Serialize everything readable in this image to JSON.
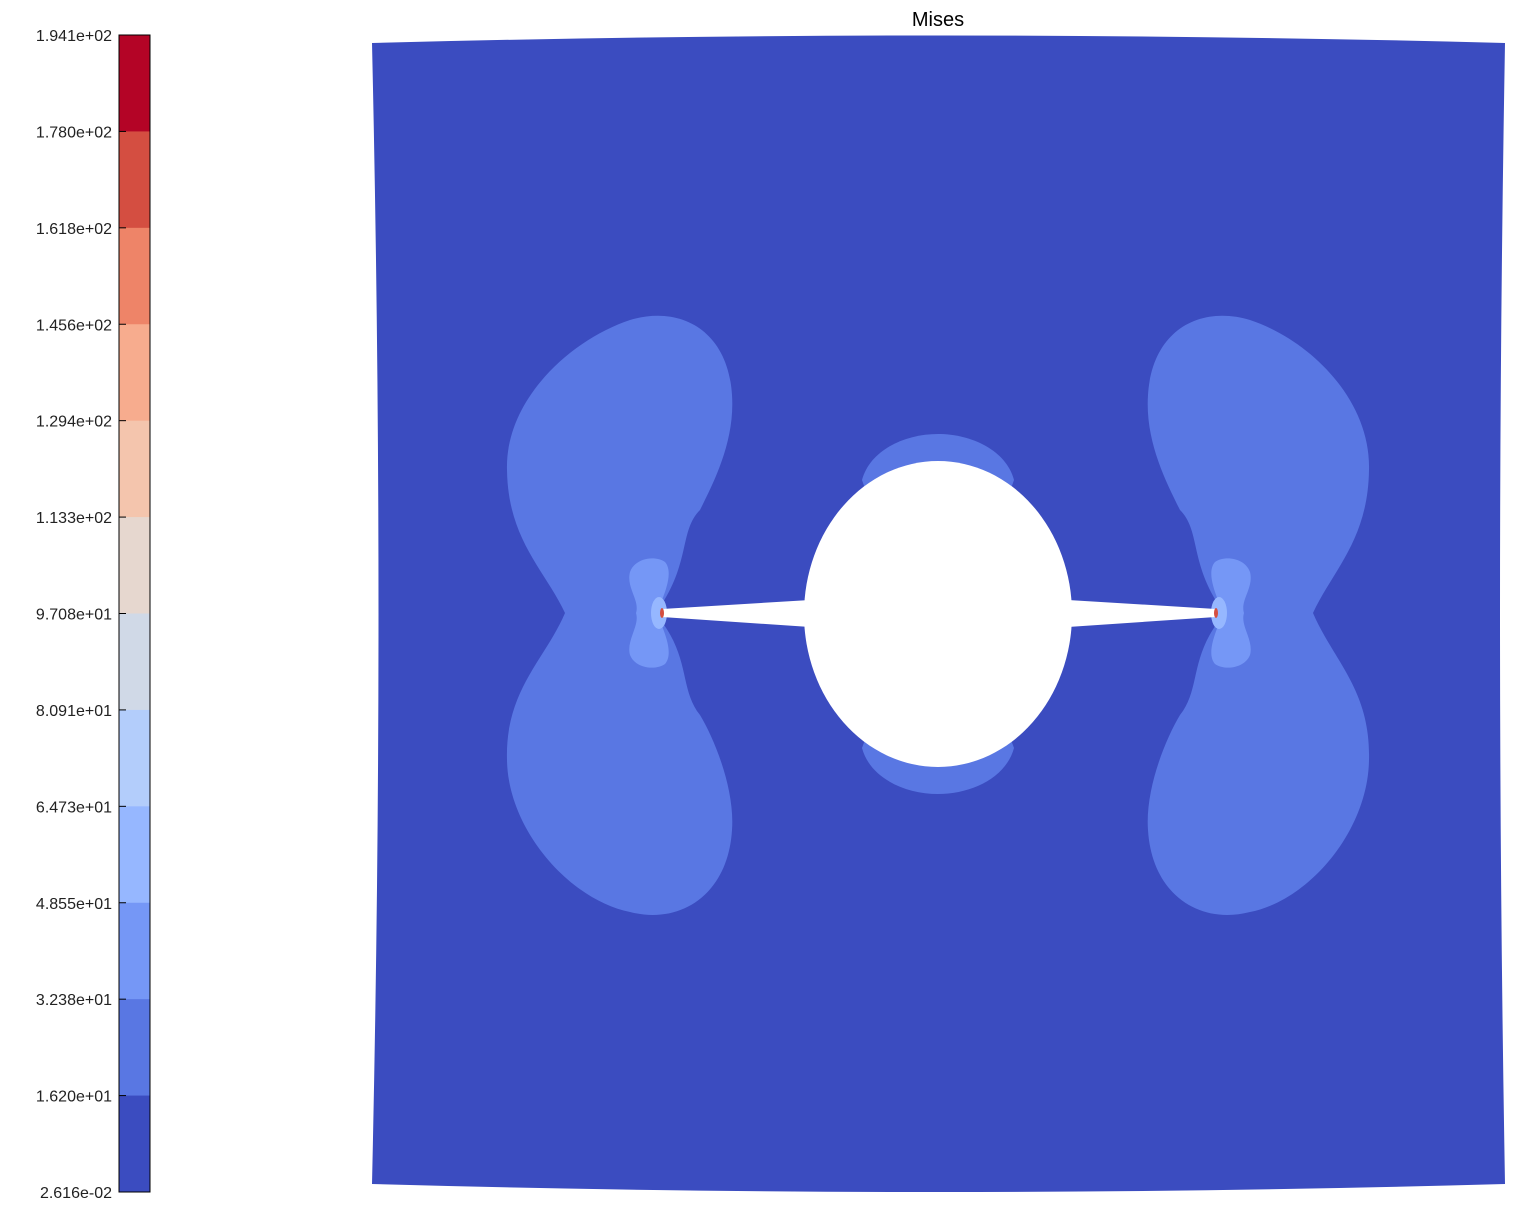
{
  "title": "Mises",
  "colorbar": {
    "ticks": [
      "1.941e+02",
      "1.780e+02",
      "1.618e+02",
      "1.456e+02",
      "1.294e+02",
      "1.133e+02",
      "9.708e+01",
      "8.091e+01",
      "6.473e+01",
      "4.855e+01",
      "3.238e+01",
      "1.620e+01",
      "2.616e-02"
    ],
    "bands": [
      "#b40426",
      "#d44e41",
      "#ee8468",
      "#f7ac8e",
      "#f4c5ad",
      "#e6d7cf",
      "#d0d9e7",
      "#b3cdfb",
      "#96b7ff",
      "#7597f6",
      "#5977e3",
      "#3b4cc0"
    ]
  },
  "colors": {
    "background": "#3b4cc0",
    "zone_outer": "#5977e3",
    "zone_inner": "#7597f6",
    "zone_core": "#96b7ff",
    "tip": "#d44e41",
    "hole": "#ffffff"
  }
}
